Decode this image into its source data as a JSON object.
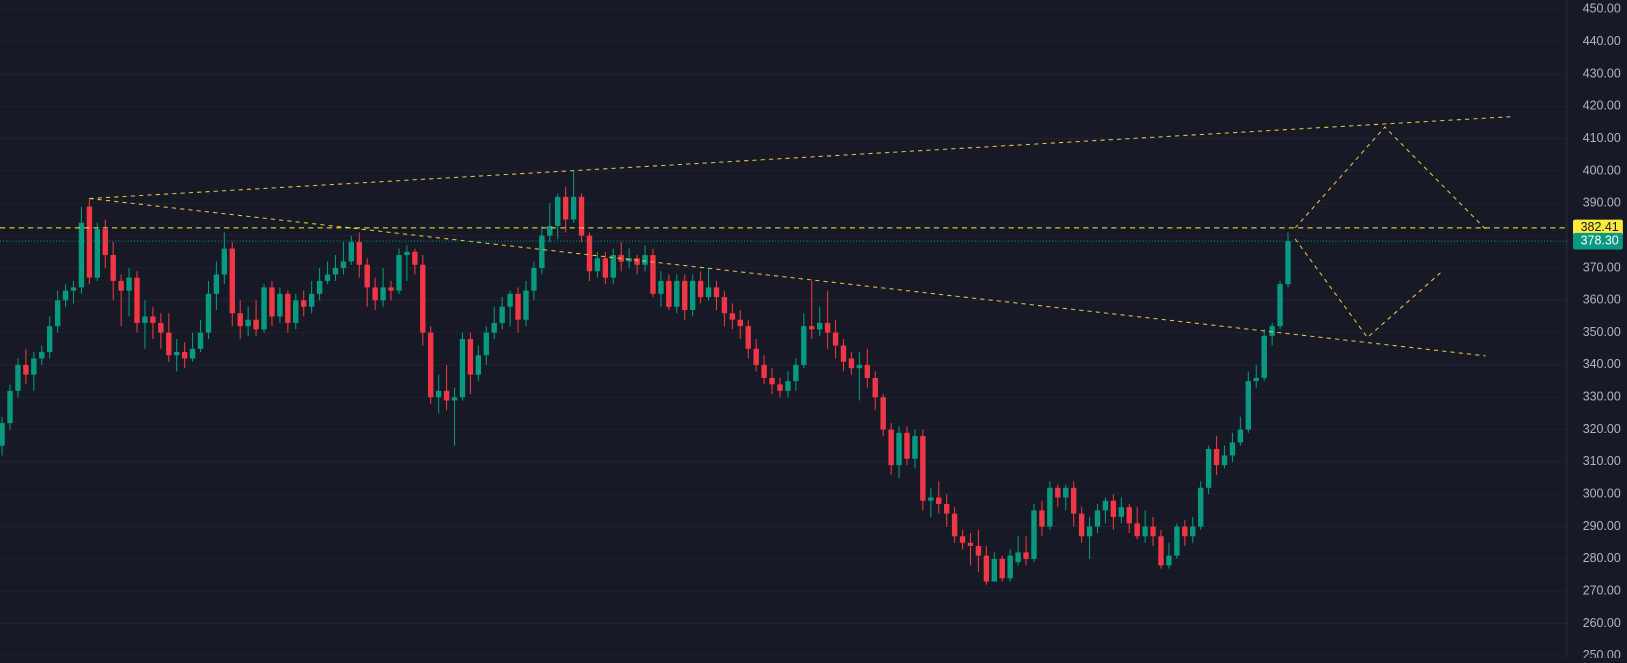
{
  "chart_data": {
    "type": "candlestick",
    "up_color": "#089981",
    "down_color": "#f23645",
    "ylim": [
      250,
      450
    ],
    "yticks": [
      {
        "value": 250,
        "label": "250.00"
      },
      {
        "value": 260,
        "label": "260.00"
      },
      {
        "value": 270,
        "label": "270.00"
      },
      {
        "value": 280,
        "label": "280.00"
      },
      {
        "value": 290,
        "label": "290.00"
      },
      {
        "value": 300,
        "label": "300.00"
      },
      {
        "value": 310,
        "label": "310.00"
      },
      {
        "value": 320,
        "label": "320.00"
      },
      {
        "value": 330,
        "label": "330.00"
      },
      {
        "value": 340,
        "label": "340.00"
      },
      {
        "value": 350,
        "label": "350.00"
      },
      {
        "value": 360,
        "label": "360.00"
      },
      {
        "value": 370,
        "label": "370.00"
      },
      {
        "value": 380,
        "label": "380.00"
      },
      {
        "value": 390,
        "label": "390.00"
      },
      {
        "value": 400,
        "label": "400.00"
      },
      {
        "value": 410,
        "label": "410.00"
      },
      {
        "value": 420,
        "label": "420.00"
      },
      {
        "value": 430,
        "label": "430.00"
      },
      {
        "value": 440,
        "label": "440.00"
      },
      {
        "value": 450,
        "label": "450.00"
      }
    ],
    "grid": true,
    "candles": {
      "open": [
        315,
        322,
        332,
        340,
        337,
        342,
        344,
        352,
        360,
        363,
        364,
        389,
        367,
        382,
        374,
        366,
        363,
        367,
        353,
        355,
        353,
        350,
        343,
        344,
        342,
        345,
        350,
        362,
        368,
        376,
        356,
        352,
        354,
        351,
        364,
        355,
        362,
        353,
        360,
        358,
        362,
        366,
        368,
        370,
        372,
        378,
        371,
        364,
        360,
        364,
        363,
        374,
        375,
        371,
        350,
        330,
        332,
        329,
        330,
        348,
        337,
        343,
        350,
        353,
        358,
        362,
        354,
        363,
        370,
        380,
        383,
        392,
        385,
        392,
        380,
        369,
        373,
        367,
        374,
        372,
        373,
        371,
        374,
        362,
        366,
        358,
        366,
        357,
        366,
        361,
        364,
        361,
        356,
        354,
        352,
        345,
        340,
        336,
        334,
        332,
        335,
        340,
        352,
        351,
        353,
        350,
        346,
        342,
        339,
        340,
        336,
        330,
        320,
        309,
        319,
        311,
        318,
        298,
        299,
        297,
        294,
        287,
        285,
        284,
        281,
        273,
        280,
        274,
        279,
        282,
        280,
        295,
        290,
        302,
        299,
        302,
        294,
        287,
        290,
        295,
        298,
        293,
        296,
        291,
        287,
        290,
        287,
        278,
        281,
        290,
        287,
        290,
        302,
        314,
        309,
        312,
        316,
        320,
        335,
        336,
        349,
        352,
        365
      ],
      "high": [
        324,
        334,
        342,
        345,
        344,
        346,
        355,
        363,
        365,
        366,
        389,
        391.5,
        384,
        385,
        378,
        368,
        370,
        369,
        360,
        358,
        356,
        356,
        348,
        347,
        350,
        354,
        366,
        372,
        381,
        378,
        360,
        358,
        360,
        365,
        366,
        364,
        363,
        362,
        363,
        366,
        370,
        372,
        374,
        378,
        380,
        381,
        373,
        367,
        370,
        366,
        376,
        377,
        376,
        374,
        352,
        337,
        340,
        333,
        350,
        350,
        346,
        352,
        358,
        361,
        363,
        364,
        366,
        372,
        383,
        390,
        393,
        395,
        400,
        393,
        381,
        375,
        375,
        376,
        378,
        376,
        374,
        377,
        376,
        369,
        368,
        368,
        368,
        368,
        369,
        370,
        366,
        363,
        359,
        357,
        354,
        348,
        343,
        339,
        336,
        338,
        342,
        356,
        366,
        358,
        363,
        354,
        348,
        344,
        344,
        345,
        338,
        331,
        322,
        321,
        321,
        320,
        320,
        302,
        304,
        300,
        296,
        289,
        288,
        289,
        284,
        282,
        281,
        283,
        287,
        287,
        297,
        298,
        304,
        303,
        303,
        304,
        296,
        293,
        297,
        299,
        300,
        299,
        297,
        296,
        295,
        293,
        289,
        285,
        291,
        292,
        293,
        304,
        315,
        318,
        315,
        319,
        324,
        338,
        340,
        351,
        353,
        366,
        381
      ],
      "low": [
        312,
        320,
        330,
        334,
        332,
        340,
        342,
        350,
        358,
        359,
        362,
        365,
        366,
        370,
        360,
        352,
        355,
        350,
        345,
        348,
        345,
        341,
        338,
        339,
        341,
        344,
        348,
        357,
        365,
        352,
        348,
        349,
        349,
        350,
        352,
        353,
        350,
        351,
        355,
        356,
        360,
        365,
        366,
        368,
        371,
        367,
        358,
        357,
        358,
        360,
        362,
        366,
        368,
        346,
        328,
        325,
        326,
        315,
        329,
        331,
        335,
        340,
        348,
        351,
        352,
        350,
        352,
        360,
        368,
        378,
        379,
        381,
        384,
        378,
        366,
        367,
        365,
        365,
        369,
        370,
        368,
        369,
        361,
        358,
        357,
        356,
        354,
        355,
        359,
        360,
        357,
        352,
        351,
        348,
        342,
        338,
        334,
        331,
        330,
        330,
        332,
        339,
        348,
        349,
        345,
        342,
        338,
        337,
        329,
        333,
        326,
        318,
        306,
        305,
        309,
        308,
        295,
        293,
        294,
        290,
        285,
        283,
        278,
        276,
        272,
        273,
        273,
        273,
        278,
        278,
        279,
        287,
        289,
        296,
        295,
        290,
        285,
        280,
        288,
        291,
        289,
        291,
        288,
        286,
        285,
        284,
        277,
        277,
        280,
        284,
        285,
        289,
        300,
        306,
        308,
        310,
        315,
        319,
        333,
        335,
        346,
        351,
        364
      ],
      "close": [
        322,
        332,
        340,
        337,
        342,
        344,
        352,
        360,
        363,
        364,
        384,
        367,
        382,
        374,
        366,
        363,
        367,
        353,
        355,
        353,
        350,
        343,
        344,
        342,
        345,
        350,
        362,
        368,
        376,
        356,
        352,
        354,
        351,
        364,
        355,
        362,
        353,
        360,
        358,
        362,
        366,
        368,
        370,
        372,
        378,
        371,
        364,
        360,
        364,
        363,
        374,
        375,
        371,
        350,
        330,
        332,
        329,
        330,
        348,
        337,
        343,
        350,
        353,
        358,
        362,
        354,
        363,
        370,
        380,
        383,
        392,
        385,
        392,
        380,
        369,
        373,
        367,
        374,
        372,
        373,
        371,
        374,
        362,
        366,
        358,
        366,
        357,
        366,
        361,
        364,
        361,
        356,
        354,
        352,
        345,
        340,
        336,
        334,
        332,
        335,
        340,
        352,
        351,
        353,
        350,
        346,
        341,
        339,
        340,
        336,
        330,
        320,
        309,
        319,
        311,
        318,
        298,
        299,
        297,
        294,
        287,
        285,
        284,
        281,
        273,
        280,
        274,
        281,
        282,
        280,
        295,
        290,
        302,
        299,
        302,
        294,
        287,
        290,
        295,
        298,
        293,
        296,
        291,
        287,
        290,
        287,
        278,
        281,
        290,
        287,
        290,
        302,
        314,
        309,
        312,
        316,
        320,
        335,
        336,
        349,
        352,
        365,
        378.3
      ]
    },
    "price_lines": [
      {
        "value": 382.41,
        "color": "#ffeb3b",
        "text_color": "#131722",
        "dash": "5 4"
      },
      {
        "value": 378.3,
        "label": "378.30",
        "color": "#089981",
        "text_color": "#ffffff",
        "dash": "1 2"
      }
    ],
    "drawing_color": "#e8c547",
    "drawings": [
      {
        "points": [
          [
            11,
            391.5
          ],
          [
            190,
            416.8
          ]
        ]
      },
      {
        "points": [
          [
            11,
            391.5
          ],
          [
            186.9,
            342.8
          ]
        ]
      },
      {
        "points": [
          [
            162.9,
            382.4
          ],
          [
            174.2,
            413.6
          ],
          [
            186.9,
            382
          ]
        ]
      },
      {
        "points": [
          [
            162.9,
            379
          ],
          [
            172,
            348.5
          ],
          [
            181.2,
            368.5
          ]
        ]
      }
    ]
  }
}
